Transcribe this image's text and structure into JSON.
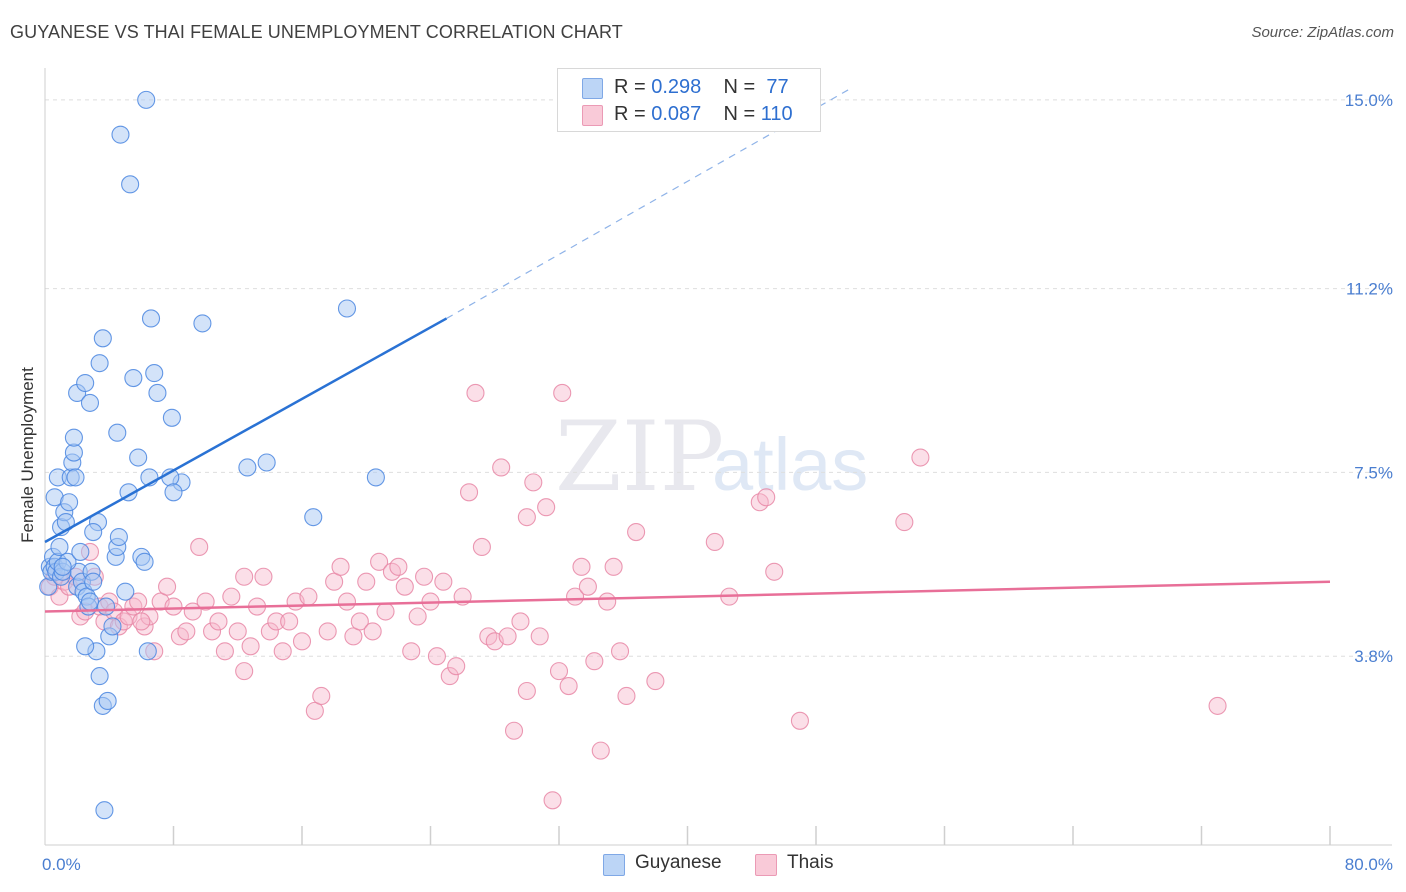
{
  "header": {
    "title": "GUYANESE VS THAI FEMALE UNEMPLOYMENT CORRELATION CHART",
    "source": "Source: ZipAtlas.com"
  },
  "watermark": {
    "text_zip": "ZIP",
    "text_atlas": "atlas"
  },
  "legend": {
    "rows": [
      {
        "r_label": "R =",
        "r_value": "0.298",
        "n_label": "N =",
        "n_value": "77",
        "color": "#a8c8f4"
      },
      {
        "r_label": "R =",
        "r_value": "0.087",
        "n_label": "N =",
        "n_value": "110",
        "color": "#f7b9cc"
      }
    ]
  },
  "bottom_legend": [
    {
      "label": "Guyanese",
      "color": "#a8c8f4"
    },
    {
      "label": "Thais",
      "color": "#f7b9cc"
    }
  ],
  "chart_data": {
    "type": "scatter",
    "title": "GUYANESE VS THAI FEMALE UNEMPLOYMENT CORRELATION CHART",
    "xlabel": "",
    "ylabel": "Female Unemployment",
    "xlim": [
      0,
      80
    ],
    "ylim": [
      0,
      15.4
    ],
    "x_tick_labels": [
      "0.0%",
      "80.0%"
    ],
    "y_ticks": [
      3.8,
      7.5,
      11.2,
      15.0
    ],
    "y_tick_labels": [
      "3.8%",
      "7.5%",
      "11.2%",
      "15.0%"
    ],
    "grid": true,
    "series": [
      {
        "name": "Guyanese",
        "color": "#4a86e0",
        "fill": "#a8c8f4",
        "trend": {
          "x0": 0,
          "y0": 6.1,
          "x1": 25,
          "y1": 10.6,
          "dash_to_x": 50,
          "dash_to_y": 15.2,
          "color": "#2a72d4"
        },
        "points": [
          [
            0.2,
            5.2
          ],
          [
            0.3,
            5.6
          ],
          [
            0.4,
            5.5
          ],
          [
            0.5,
            5.8
          ],
          [
            0.6,
            5.6
          ],
          [
            0.7,
            5.5
          ],
          [
            0.8,
            5.7
          ],
          [
            0.9,
            6.0
          ],
          [
            1.0,
            5.4
          ],
          [
            1.1,
            5.5
          ],
          [
            0.6,
            7.0
          ],
          [
            0.8,
            7.4
          ],
          [
            1.0,
            6.4
          ],
          [
            1.2,
            6.7
          ],
          [
            1.3,
            6.5
          ],
          [
            1.5,
            6.9
          ],
          [
            1.6,
            7.4
          ],
          [
            1.7,
            7.7
          ],
          [
            1.8,
            7.9
          ],
          [
            1.9,
            7.4
          ],
          [
            1.8,
            8.2
          ],
          [
            2.0,
            5.2
          ],
          [
            2.1,
            5.5
          ],
          [
            2.3,
            5.3
          ],
          [
            2.4,
            5.1
          ],
          [
            2.6,
            5.0
          ],
          [
            2.7,
            4.8
          ],
          [
            2.8,
            4.9
          ],
          [
            2.9,
            5.5
          ],
          [
            3.0,
            5.3
          ],
          [
            3.2,
            3.9
          ],
          [
            3.4,
            3.4
          ],
          [
            3.6,
            2.8
          ],
          [
            3.7,
            0.7
          ],
          [
            3.8,
            4.8
          ],
          [
            4.0,
            4.2
          ],
          [
            4.2,
            4.4
          ],
          [
            4.4,
            5.8
          ],
          [
            4.5,
            6.0
          ],
          [
            4.6,
            6.2
          ],
          [
            5.0,
            5.1
          ],
          [
            5.2,
            7.1
          ],
          [
            5.5,
            9.4
          ],
          [
            5.8,
            7.8
          ],
          [
            6.0,
            5.8
          ],
          [
            6.2,
            5.7
          ],
          [
            6.4,
            3.9
          ],
          [
            6.5,
            7.4
          ],
          [
            6.8,
            9.5
          ],
          [
            7.0,
            9.1
          ],
          [
            2.0,
            9.1
          ],
          [
            2.5,
            9.3
          ],
          [
            2.8,
            8.9
          ],
          [
            3.4,
            9.7
          ],
          [
            3.6,
            10.2
          ],
          [
            4.5,
            8.3
          ],
          [
            4.7,
            14.3
          ],
          [
            5.3,
            13.3
          ],
          [
            6.3,
            15.0
          ],
          [
            6.6,
            10.6
          ],
          [
            8.5,
            7.3
          ],
          [
            7.8,
            7.4
          ],
          [
            8.0,
            7.1
          ],
          [
            7.9,
            8.6
          ],
          [
            9.8,
            10.5
          ],
          [
            12.6,
            7.6
          ],
          [
            13.8,
            7.7
          ],
          [
            16.7,
            6.6
          ],
          [
            18.8,
            10.8
          ],
          [
            20.6,
            7.4
          ],
          [
            3.3,
            6.5
          ],
          [
            3.9,
            2.9
          ],
          [
            2.5,
            4.0
          ],
          [
            1.4,
            5.7
          ],
          [
            3.0,
            6.3
          ],
          [
            2.2,
            5.9
          ],
          [
            1.1,
            5.6
          ]
        ]
      },
      {
        "name": "Thais",
        "color": "#e887a6",
        "fill": "#f7b9cc",
        "trend": {
          "x0": 0,
          "y0": 4.7,
          "x1": 80,
          "y1": 5.3,
          "color": "#e86f98"
        },
        "points": [
          [
            0.3,
            5.2
          ],
          [
            0.6,
            5.4
          ],
          [
            0.9,
            5.0
          ],
          [
            1.2,
            5.3
          ],
          [
            1.5,
            5.2
          ],
          [
            1.9,
            5.4
          ],
          [
            2.2,
            4.6
          ],
          [
            2.5,
            4.7
          ],
          [
            2.8,
            5.9
          ],
          [
            3.1,
            5.4
          ],
          [
            3.4,
            4.8
          ],
          [
            3.7,
            4.5
          ],
          [
            4.0,
            4.9
          ],
          [
            4.3,
            4.7
          ],
          [
            4.6,
            4.4
          ],
          [
            4.9,
            4.5
          ],
          [
            5.2,
            4.6
          ],
          [
            5.5,
            4.8
          ],
          [
            5.8,
            4.9
          ],
          [
            6.2,
            4.4
          ],
          [
            6.5,
            4.6
          ],
          [
            6.8,
            3.9
          ],
          [
            7.2,
            4.9
          ],
          [
            7.6,
            5.2
          ],
          [
            8.0,
            4.8
          ],
          [
            8.4,
            4.2
          ],
          [
            8.8,
            4.3
          ],
          [
            9.2,
            4.7
          ],
          [
            9.6,
            6.0
          ],
          [
            10.0,
            4.9
          ],
          [
            10.4,
            4.3
          ],
          [
            10.8,
            4.5
          ],
          [
            11.2,
            3.9
          ],
          [
            11.6,
            5.0
          ],
          [
            12.0,
            4.3
          ],
          [
            12.4,
            3.5
          ],
          [
            12.8,
            4.0
          ],
          [
            13.2,
            4.8
          ],
          [
            13.6,
            5.4
          ],
          [
            14.0,
            4.3
          ],
          [
            14.4,
            4.5
          ],
          [
            14.8,
            3.9
          ],
          [
            15.2,
            4.5
          ],
          [
            15.6,
            4.9
          ],
          [
            16.0,
            4.1
          ],
          [
            16.4,
            5.0
          ],
          [
            16.8,
            2.7
          ],
          [
            17.2,
            3.0
          ],
          [
            17.6,
            4.3
          ],
          [
            18.0,
            5.3
          ],
          [
            18.4,
            5.6
          ],
          [
            18.8,
            4.9
          ],
          [
            19.2,
            4.2
          ],
          [
            19.6,
            4.5
          ],
          [
            20.0,
            5.3
          ],
          [
            20.4,
            4.3
          ],
          [
            20.8,
            5.7
          ],
          [
            21.2,
            4.7
          ],
          [
            21.6,
            5.5
          ],
          [
            22.0,
            5.6
          ],
          [
            22.4,
            5.2
          ],
          [
            22.8,
            3.9
          ],
          [
            23.2,
            4.6
          ],
          [
            23.6,
            5.4
          ],
          [
            24.0,
            4.9
          ],
          [
            24.4,
            3.8
          ],
          [
            24.8,
            5.3
          ],
          [
            25.2,
            3.4
          ],
          [
            25.6,
            3.6
          ],
          [
            26.0,
            5.0
          ],
          [
            26.4,
            7.1
          ],
          [
            26.8,
            9.1
          ],
          [
            27.2,
            6.0
          ],
          [
            27.6,
            4.2
          ],
          [
            28.0,
            4.1
          ],
          [
            28.4,
            7.6
          ],
          [
            28.8,
            4.2
          ],
          [
            29.2,
            2.3
          ],
          [
            29.6,
            4.5
          ],
          [
            30.0,
            3.1
          ],
          [
            30.4,
            7.3
          ],
          [
            30.8,
            4.2
          ],
          [
            31.2,
            6.8
          ],
          [
            31.6,
            0.9
          ],
          [
            32.0,
            3.5
          ],
          [
            32.2,
            9.1
          ],
          [
            32.6,
            3.2
          ],
          [
            33.0,
            5.0
          ],
          [
            33.4,
            5.6
          ],
          [
            33.8,
            5.2
          ],
          [
            34.2,
            3.7
          ],
          [
            34.6,
            1.9
          ],
          [
            35.0,
            4.9
          ],
          [
            35.4,
            5.6
          ],
          [
            35.8,
            3.9
          ],
          [
            36.2,
            3.0
          ],
          [
            36.8,
            6.3
          ],
          [
            38.0,
            3.3
          ],
          [
            41.7,
            6.1
          ],
          [
            42.6,
            5.0
          ],
          [
            44.5,
            6.9
          ],
          [
            44.9,
            7.0
          ],
          [
            45.4,
            5.5
          ],
          [
            47.0,
            2.5
          ],
          [
            53.5,
            6.5
          ],
          [
            54.5,
            7.8
          ],
          [
            73.0,
            2.8
          ],
          [
            6.0,
            4.5
          ],
          [
            12.4,
            5.4
          ],
          [
            30.0,
            6.6
          ]
        ]
      }
    ]
  }
}
